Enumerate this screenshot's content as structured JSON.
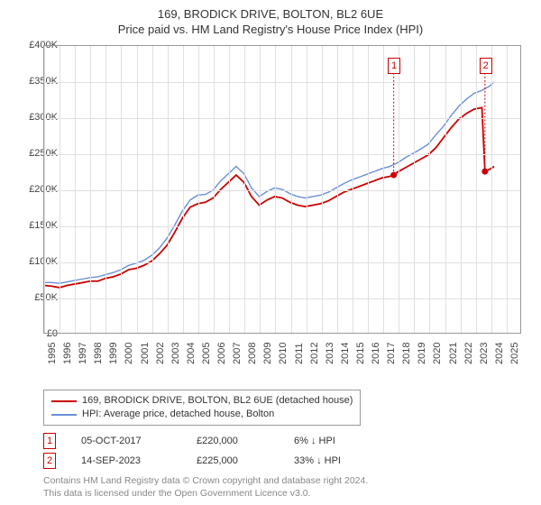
{
  "title": {
    "main": "169, BRODICK DRIVE, BOLTON, BL2 6UE",
    "sub": "Price paid vs. HM Land Registry's House Price Index (HPI)"
  },
  "chart": {
    "type": "line",
    "x_years": [
      1995,
      1996,
      1997,
      1998,
      1999,
      2000,
      2001,
      2002,
      2003,
      2004,
      2005,
      2006,
      2007,
      2008,
      2009,
      2010,
      2011,
      2012,
      2013,
      2014,
      2015,
      2016,
      2017,
      2018,
      2019,
      2020,
      2021,
      2022,
      2023,
      2024,
      2025
    ],
    "xlim": [
      1995,
      2026
    ],
    "ylim": [
      0,
      400000
    ],
    "ytick_step": 50000,
    "ytick_labels": [
      "£0",
      "£50K",
      "£100K",
      "£150K",
      "£200K",
      "£250K",
      "£300K",
      "£350K",
      "£400K"
    ],
    "background_color": "#ffffff",
    "grid_color": "#e0e0e0",
    "axis_color": "#999999",
    "label_fontsize": 11,
    "title_fontsize": 13,
    "series": [
      {
        "name": "price_paid",
        "label": "169, BRODICK DRIVE, BOLTON, BL2 6UE (detached house)",
        "color": "#cc0000",
        "line_width": 1.8,
        "data": [
          [
            1995.0,
            66000
          ],
          [
            1995.5,
            65000
          ],
          [
            1996.0,
            63000
          ],
          [
            1996.5,
            66000
          ],
          [
            1997.0,
            68000
          ],
          [
            1997.5,
            70000
          ],
          [
            1998.0,
            72000
          ],
          [
            1998.5,
            72000
          ],
          [
            1999.0,
            76000
          ],
          [
            1999.5,
            78000
          ],
          [
            2000.0,
            82000
          ],
          [
            2000.5,
            88000
          ],
          [
            2001.0,
            90000
          ],
          [
            2001.5,
            94000
          ],
          [
            2002.0,
            100000
          ],
          [
            2002.5,
            110000
          ],
          [
            2003.0,
            122000
          ],
          [
            2003.5,
            140000
          ],
          [
            2004.0,
            160000
          ],
          [
            2004.5,
            175000
          ],
          [
            2005.0,
            180000
          ],
          [
            2005.5,
            182000
          ],
          [
            2006.0,
            188000
          ],
          [
            2006.5,
            200000
          ],
          [
            2007.0,
            210000
          ],
          [
            2007.5,
            220000
          ],
          [
            2008.0,
            210000
          ],
          [
            2008.5,
            190000
          ],
          [
            2009.0,
            178000
          ],
          [
            2009.5,
            185000
          ],
          [
            2010.0,
            190000
          ],
          [
            2010.5,
            188000
          ],
          [
            2011.0,
            182000
          ],
          [
            2011.5,
            178000
          ],
          [
            2012.0,
            176000
          ],
          [
            2012.5,
            178000
          ],
          [
            2013.0,
            180000
          ],
          [
            2013.5,
            184000
          ],
          [
            2014.0,
            190000
          ],
          [
            2014.5,
            196000
          ],
          [
            2015.0,
            200000
          ],
          [
            2015.5,
            204000
          ],
          [
            2016.0,
            208000
          ],
          [
            2016.5,
            212000
          ],
          [
            2017.0,
            216000
          ],
          [
            2017.5,
            218000
          ],
          [
            2017.76,
            220000
          ],
          [
            2018.0,
            224000
          ],
          [
            2018.5,
            230000
          ],
          [
            2019.0,
            236000
          ],
          [
            2019.5,
            242000
          ],
          [
            2020.0,
            248000
          ],
          [
            2020.5,
            258000
          ],
          [
            2021.0,
            272000
          ],
          [
            2021.5,
            286000
          ],
          [
            2022.0,
            298000
          ],
          [
            2022.5,
            306000
          ],
          [
            2023.0,
            312000
          ],
          [
            2023.5,
            314000
          ],
          [
            2023.7,
            225000
          ],
          [
            2024.0,
            228000
          ],
          [
            2024.3,
            232000
          ]
        ]
      },
      {
        "name": "hpi",
        "label": "HPI: Average price, detached house, Bolton",
        "color": "#6a8fd6",
        "line_width": 1.4,
        "data": [
          [
            1995.0,
            70000
          ],
          [
            1995.5,
            70000
          ],
          [
            1996.0,
            69000
          ],
          [
            1996.5,
            71000
          ],
          [
            1997.0,
            73000
          ],
          [
            1997.5,
            75000
          ],
          [
            1998.0,
            77000
          ],
          [
            1998.5,
            78000
          ],
          [
            1999.0,
            81000
          ],
          [
            1999.5,
            84000
          ],
          [
            2000.0,
            88000
          ],
          [
            2000.5,
            94000
          ],
          [
            2001.0,
            97000
          ],
          [
            2001.5,
            101000
          ],
          [
            2002.0,
            108000
          ],
          [
            2002.5,
            118000
          ],
          [
            2003.0,
            132000
          ],
          [
            2003.5,
            150000
          ],
          [
            2004.0,
            170000
          ],
          [
            2004.5,
            185000
          ],
          [
            2005.0,
            192000
          ],
          [
            2005.5,
            193000
          ],
          [
            2006.0,
            199000
          ],
          [
            2006.5,
            212000
          ],
          [
            2007.0,
            222000
          ],
          [
            2007.5,
            232000
          ],
          [
            2008.0,
            222000
          ],
          [
            2008.5,
            202000
          ],
          [
            2009.0,
            190000
          ],
          [
            2009.5,
            197000
          ],
          [
            2010.0,
            202000
          ],
          [
            2010.5,
            200000
          ],
          [
            2011.0,
            194000
          ],
          [
            2011.5,
            190000
          ],
          [
            2012.0,
            188000
          ],
          [
            2012.5,
            190000
          ],
          [
            2013.0,
            192000
          ],
          [
            2013.5,
            196000
          ],
          [
            2014.0,
            202000
          ],
          [
            2014.5,
            208000
          ],
          [
            2015.0,
            213000
          ],
          [
            2015.5,
            217000
          ],
          [
            2016.0,
            221000
          ],
          [
            2016.5,
            225000
          ],
          [
            2017.0,
            229000
          ],
          [
            2017.5,
            232000
          ],
          [
            2018.0,
            237000
          ],
          [
            2018.5,
            244000
          ],
          [
            2019.0,
            250000
          ],
          [
            2019.5,
            256000
          ],
          [
            2020.0,
            263000
          ],
          [
            2020.5,
            276000
          ],
          [
            2021.0,
            288000
          ],
          [
            2021.5,
            303000
          ],
          [
            2022.0,
            316000
          ],
          [
            2022.5,
            326000
          ],
          [
            2023.0,
            334000
          ],
          [
            2023.5,
            338000
          ],
          [
            2024.0,
            344000
          ],
          [
            2024.3,
            350000
          ]
        ]
      }
    ],
    "sale_markers": [
      {
        "n": "1",
        "x_year": 2017.76,
        "y_value": 220000,
        "box_y": 64,
        "color": "#cc0000"
      },
      {
        "n": "2",
        "x_year": 2023.7,
        "y_value": 225000,
        "box_y": 64,
        "color": "#cc0000"
      }
    ]
  },
  "legend": {
    "items": [
      {
        "color": "#cc0000",
        "label": "169, BRODICK DRIVE, BOLTON, BL2 6UE (detached house)"
      },
      {
        "color": "#6a8fd6",
        "label": "HPI: Average price, detached house, Bolton"
      }
    ]
  },
  "sales": [
    {
      "n": "1",
      "date": "05-OCT-2017",
      "price": "£220,000",
      "pct": "6% ↓ HPI",
      "color": "#cc0000"
    },
    {
      "n": "2",
      "date": "14-SEP-2023",
      "price": "£225,000",
      "pct": "33% ↓ HPI",
      "color": "#cc0000"
    }
  ],
  "footnote": {
    "line1": "Contains HM Land Registry data © Crown copyright and database right 2024.",
    "line2": "This data is licensed under the Open Government Licence v3.0."
  }
}
